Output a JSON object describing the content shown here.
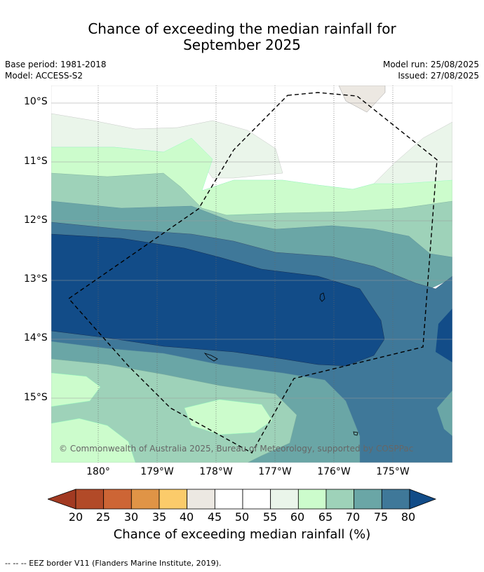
{
  "title": {
    "line1": "Chance of exceeding the median rainfall for",
    "line2": "September 2025"
  },
  "meta": {
    "base_period": "Base period: 1981-2018",
    "model": "Model: ACCESS-S2",
    "model_run": "Model run: 25/08/2025",
    "issued": "Issued: 27/08/2025"
  },
  "map": {
    "lat_labels": [
      "10°S",
      "11°S",
      "12°S",
      "13°S",
      "14°S",
      "15°S"
    ],
    "lon_labels": [
      "180°",
      "179°W",
      "178°W",
      "177°W",
      "176°W",
      "175°W"
    ],
    "copyright": "© Commonwealth of Australia 2025, Bureau of Meteorology, supported by COSPPac",
    "colors": {
      "c40_45": "#ece8e2",
      "c45_55": "#ffffff",
      "c55_60": "#eaf5ea",
      "c60_65": "#ccfccc",
      "c65_70": "#9ed2b9",
      "c70_75": "#6aa6a6",
      "c75_80": "#3f7899",
      "c80_plus": "#124c88"
    }
  },
  "colorbar": {
    "title": "Chance of exceeding median rainfall (%)",
    "ticks": [
      "20",
      "25",
      "30",
      "35",
      "40",
      "45",
      "50",
      "55",
      "60",
      "65",
      "70",
      "75",
      "80"
    ],
    "low_color": "#a23a22",
    "high_color": "#124c88",
    "colors": [
      "#b24a28",
      "#cd6535",
      "#e09446",
      "#fbcb6a",
      "#ece8e2",
      "#ffffff",
      "#ffffff",
      "#eaf5ea",
      "#ccfccc",
      "#9ed2b9",
      "#6aa6a6",
      "#3f7899"
    ]
  },
  "footer": "--  --  -- EEZ border V11 (Flanders Marine Institute, 2019)."
}
